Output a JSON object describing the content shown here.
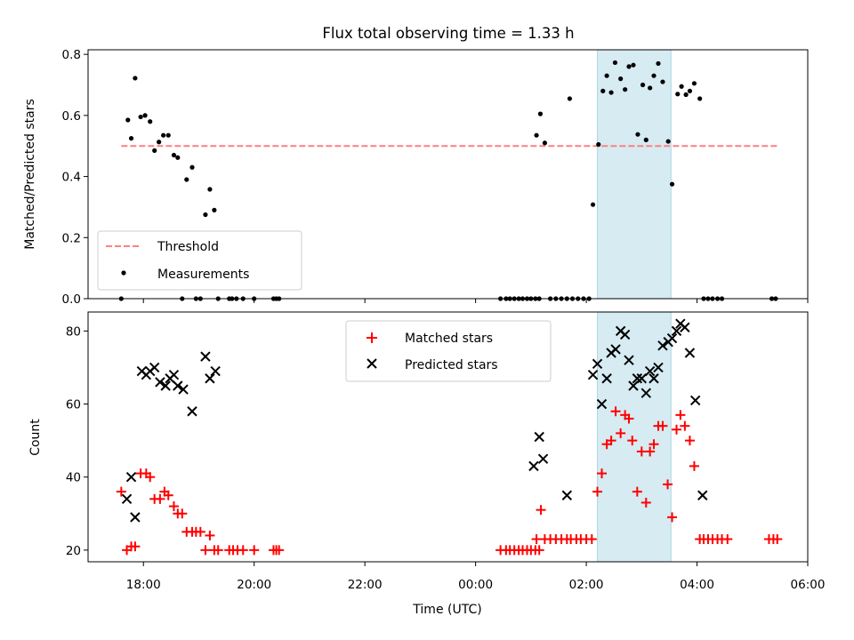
{
  "chart_data": {
    "title": "Flux total observing time = 1.33 h",
    "xlabel": "Time (UTC)",
    "x_unit": "hours",
    "x_tick_labels": [
      "18:00",
      "20:00",
      "22:00",
      "00:00",
      "02:00",
      "04:00",
      "06:00"
    ],
    "xlim": [
      17.0,
      30.0
    ],
    "highlight_span": [
      26.2,
      27.53
    ],
    "highlight_color": "#add8e6",
    "subplots": [
      {
        "type": "scatter",
        "ylabel": "Matched/Predicted stars",
        "ylim": [
          0,
          0.815
        ],
        "y_ticks": [
          0.0,
          0.2,
          0.4,
          0.6,
          0.8
        ],
        "y_tick_labels": [
          "0.0",
          "0.2",
          "0.4",
          "0.6",
          "0.8"
        ],
        "legend_position": "lower-left",
        "threshold": {
          "name": "Threshold",
          "y": 0.5,
          "x_range": [
            17.6,
            29.45
          ],
          "color": "#ff7f7f",
          "style": "dashed"
        },
        "series": [
          {
            "name": "Measurements",
            "marker": "dot",
            "color": "#000000",
            "points": [
              [
                17.6,
                0.0
              ],
              [
                17.72,
                0.585
              ],
              [
                17.78,
                0.525
              ],
              [
                17.85,
                0.722
              ],
              [
                17.95,
                0.595
              ],
              [
                18.03,
                0.6
              ],
              [
                18.12,
                0.58
              ],
              [
                18.2,
                0.485
              ],
              [
                18.28,
                0.513
              ],
              [
                18.36,
                0.535
              ],
              [
                18.45,
                0.535
              ],
              [
                18.55,
                0.47
              ],
              [
                18.62,
                0.462
              ],
              [
                18.7,
                0.0
              ],
              [
                18.78,
                0.39
              ],
              [
                18.88,
                0.43
              ],
              [
                18.95,
                0.0
              ],
              [
                19.03,
                0.0
              ],
              [
                19.12,
                0.275
              ],
              [
                19.2,
                0.358
              ],
              [
                19.28,
                0.29
              ],
              [
                19.35,
                0.0
              ],
              [
                19.55,
                0.0
              ],
              [
                19.6,
                0.0
              ],
              [
                19.68,
                0.0
              ],
              [
                19.8,
                0.0
              ],
              [
                20.0,
                0.0
              ],
              [
                20.35,
                0.0
              ],
              [
                20.4,
                0.0
              ],
              [
                20.45,
                0.0
              ],
              [
                24.45,
                0.0
              ],
              [
                24.55,
                0.0
              ],
              [
                24.62,
                0.0
              ],
              [
                24.7,
                0.0
              ],
              [
                24.78,
                0.0
              ],
              [
                24.85,
                0.0
              ],
              [
                24.93,
                0.0
              ],
              [
                25.0,
                0.0
              ],
              [
                25.08,
                0.0
              ],
              [
                25.15,
                0.0
              ],
              [
                25.1,
                0.535
              ],
              [
                25.17,
                0.605
              ],
              [
                25.25,
                0.51
              ],
              [
                25.35,
                0.0
              ],
              [
                25.45,
                0.0
              ],
              [
                25.55,
                0.0
              ],
              [
                25.65,
                0.0
              ],
              [
                25.7,
                0.655
              ],
              [
                25.75,
                0.0
              ],
              [
                25.85,
                0.0
              ],
              [
                25.95,
                0.0
              ],
              [
                26.05,
                0.0
              ],
              [
                26.12,
                0.308
              ],
              [
                26.22,
                0.505
              ],
              [
                26.3,
                0.68
              ],
              [
                26.37,
                0.73
              ],
              [
                26.45,
                0.675
              ],
              [
                26.52,
                0.773
              ],
              [
                26.62,
                0.72
              ],
              [
                26.7,
                0.685
              ],
              [
                26.77,
                0.76
              ],
              [
                26.85,
                0.765
              ],
              [
                26.93,
                0.538
              ],
              [
                27.02,
                0.7
              ],
              [
                27.08,
                0.52
              ],
              [
                27.15,
                0.69
              ],
              [
                27.22,
                0.73
              ],
              [
                27.3,
                0.77
              ],
              [
                27.38,
                0.71
              ],
              [
                27.48,
                0.515
              ],
              [
                27.55,
                0.375
              ],
              [
                27.65,
                0.67
              ],
              [
                27.72,
                0.695
              ],
              [
                27.8,
                0.668
              ],
              [
                27.87,
                0.68
              ],
              [
                27.95,
                0.705
              ],
              [
                28.05,
                0.655
              ],
              [
                28.12,
                0.0
              ],
              [
                28.2,
                0.0
              ],
              [
                28.28,
                0.0
              ],
              [
                28.37,
                0.0
              ],
              [
                28.45,
                0.0
              ],
              [
                29.35,
                0.0
              ],
              [
                29.42,
                0.0
              ]
            ]
          }
        ]
      },
      {
        "type": "scatter",
        "ylabel": "Count",
        "ylim": [
          16.8,
          85.2
        ],
        "y_ticks": [
          20,
          40,
          60,
          80
        ],
        "y_tick_labels": [
          "20",
          "40",
          "60",
          "80"
        ],
        "legend_position": "top-center",
        "series": [
          {
            "name": "Matched stars",
            "marker": "plus",
            "color": "#ff0000",
            "points": [
              [
                17.6,
                36
              ],
              [
                17.7,
                20
              ],
              [
                17.78,
                21
              ],
              [
                17.85,
                21
              ],
              [
                17.95,
                41
              ],
              [
                18.05,
                41
              ],
              [
                18.12,
                40
              ],
              [
                18.2,
                34
              ],
              [
                18.3,
                34
              ],
              [
                18.38,
                36
              ],
              [
                18.45,
                35
              ],
              [
                18.55,
                32
              ],
              [
                18.62,
                30
              ],
              [
                18.7,
                30
              ],
              [
                18.78,
                25
              ],
              [
                18.88,
                25
              ],
              [
                18.95,
                25
              ],
              [
                19.03,
                25
              ],
              [
                19.12,
                20
              ],
              [
                19.2,
                24
              ],
              [
                19.28,
                20
              ],
              [
                19.35,
                20
              ],
              [
                19.55,
                20
              ],
              [
                19.62,
                20
              ],
              [
                19.7,
                20
              ],
              [
                19.8,
                20
              ],
              [
                20.0,
                20
              ],
              [
                20.35,
                20
              ],
              [
                20.4,
                20
              ],
              [
                20.45,
                20
              ],
              [
                24.45,
                20
              ],
              [
                24.55,
                20
              ],
              [
                24.62,
                20
              ],
              [
                24.7,
                20
              ],
              [
                24.78,
                20
              ],
              [
                24.85,
                20
              ],
              [
                24.93,
                20
              ],
              [
                25.0,
                20
              ],
              [
                25.08,
                20
              ],
              [
                25.15,
                20
              ],
              [
                25.1,
                23
              ],
              [
                25.18,
                31
              ],
              [
                25.25,
                23
              ],
              [
                25.35,
                23
              ],
              [
                25.45,
                23
              ],
              [
                25.55,
                23
              ],
              [
                25.65,
                23
              ],
              [
                25.72,
                23
              ],
              [
                25.82,
                23
              ],
              [
                25.9,
                23
              ],
              [
                26.0,
                23
              ],
              [
                26.1,
                23
              ],
              [
                26.2,
                36
              ],
              [
                26.28,
                41
              ],
              [
                26.37,
                49
              ],
              [
                26.45,
                50
              ],
              [
                26.53,
                58
              ],
              [
                26.62,
                52
              ],
              [
                26.7,
                57
              ],
              [
                26.77,
                56
              ],
              [
                26.83,
                50
              ],
              [
                26.92,
                36
              ],
              [
                27.0,
                47
              ],
              [
                27.08,
                33
              ],
              [
                27.15,
                47
              ],
              [
                27.22,
                49
              ],
              [
                27.3,
                54
              ],
              [
                27.38,
                54
              ],
              [
                27.47,
                38
              ],
              [
                27.55,
                29
              ],
              [
                27.63,
                53
              ],
              [
                27.7,
                57
              ],
              [
                27.78,
                54
              ],
              [
                27.87,
                50
              ],
              [
                27.95,
                43
              ],
              [
                28.05,
                23
              ],
              [
                28.12,
                23
              ],
              [
                28.2,
                23
              ],
              [
                28.28,
                23
              ],
              [
                28.37,
                23
              ],
              [
                28.45,
                23
              ],
              [
                28.55,
                23
              ],
              [
                29.3,
                23
              ],
              [
                29.38,
                23
              ],
              [
                29.45,
                23
              ]
            ]
          },
          {
            "name": "Predicted stars",
            "marker": "x",
            "color": "#000000",
            "points": [
              [
                17.7,
                34
              ],
              [
                17.78,
                40
              ],
              [
                17.85,
                29
              ],
              [
                17.97,
                69
              ],
              [
                18.05,
                68
              ],
              [
                18.12,
                69
              ],
              [
                18.2,
                70
              ],
              [
                18.3,
                66
              ],
              [
                18.4,
                65
              ],
              [
                18.48,
                67
              ],
              [
                18.55,
                68
              ],
              [
                18.62,
                65
              ],
              [
                18.72,
                64
              ],
              [
                18.88,
                58
              ],
              [
                19.12,
                73
              ],
              [
                19.2,
                67
              ],
              [
                19.3,
                69
              ],
              [
                25.05,
                43
              ],
              [
                25.15,
                51
              ],
              [
                25.22,
                45
              ],
              [
                25.65,
                35
              ],
              [
                26.12,
                68
              ],
              [
                26.2,
                71
              ],
              [
                26.28,
                60
              ],
              [
                26.37,
                67
              ],
              [
                26.45,
                74
              ],
              [
                26.53,
                75
              ],
              [
                26.62,
                80
              ],
              [
                26.7,
                79
              ],
              [
                26.77,
                72
              ],
              [
                26.85,
                65
              ],
              [
                26.92,
                67
              ],
              [
                27.0,
                67
              ],
              [
                27.08,
                63
              ],
              [
                27.15,
                69
              ],
              [
                27.22,
                67
              ],
              [
                27.3,
                70
              ],
              [
                27.38,
                76
              ],
              [
                27.48,
                77
              ],
              [
                27.55,
                78
              ],
              [
                27.63,
                80
              ],
              [
                27.7,
                82
              ],
              [
                27.78,
                81
              ],
              [
                27.87,
                74
              ],
              [
                27.97,
                61
              ],
              [
                28.1,
                35
              ]
            ]
          }
        ]
      }
    ]
  }
}
